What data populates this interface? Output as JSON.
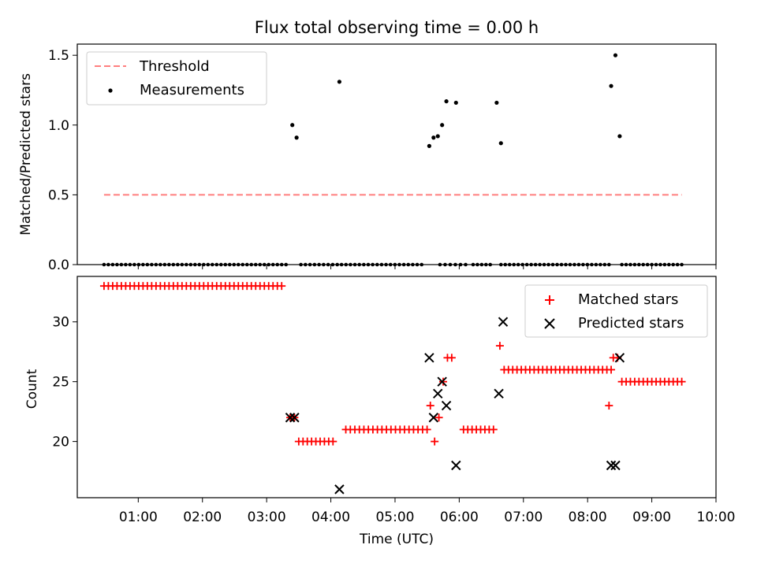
{
  "title": "Flux total observing time = 0.00 h",
  "xlabel": "Time (UTC)",
  "xticks": [
    {
      "t": 60,
      "label": "01:00"
    },
    {
      "t": 120,
      "label": "02:00"
    },
    {
      "t": 180,
      "label": "03:00"
    },
    {
      "t": 240,
      "label": "04:00"
    },
    {
      "t": 300,
      "label": "05:00"
    },
    {
      "t": 360,
      "label": "06:00"
    },
    {
      "t": 420,
      "label": "07:00"
    },
    {
      "t": 480,
      "label": "08:00"
    },
    {
      "t": 540,
      "label": "09:00"
    },
    {
      "t": 600,
      "label": "10:00"
    }
  ],
  "colors": {
    "threshold": "#ff7f7f",
    "measurements": "#000000",
    "matched": "#ff0000",
    "predicted": "#000000"
  },
  "chart_data": [
    {
      "type": "scatter",
      "xunit": "minutes after 00:00 UTC",
      "xlim": [
        3,
        600
      ],
      "ylabel": "Matched/Predicted stars",
      "ylim": [
        0,
        1.58
      ],
      "yticks": [
        {
          "v": 0,
          "label": "0.0"
        },
        {
          "v": 0.5,
          "label": "0.5"
        },
        {
          "v": 1.0,
          "label": "1.0"
        },
        {
          "v": 1.5,
          "label": "1.5"
        }
      ],
      "legend_position": "top-left",
      "legend": [
        {
          "key": "threshold",
          "label": "Threshold"
        },
        {
          "key": "measurements",
          "label": "Measurements"
        }
      ],
      "threshold": {
        "value": 0.5,
        "x_start": 28,
        "x_end": 568
      },
      "zero_runs": [
        {
          "start": 28,
          "end": 202,
          "step": 4.05
        },
        {
          "start": 212,
          "end": 246,
          "step": 4.25
        },
        {
          "start": 250,
          "end": 329,
          "step": 4.16
        },
        {
          "start": 342,
          "end": 366,
          "step": 4.8
        },
        {
          "start": 373,
          "end": 389,
          "step": 4.0
        },
        {
          "start": 399,
          "end": 500,
          "step": 4.04
        },
        {
          "start": 512,
          "end": 568,
          "step": 4.0
        }
      ],
      "points": [
        {
          "x": 204,
          "y": 1.0
        },
        {
          "x": 208,
          "y": 0.91
        },
        {
          "x": 248,
          "y": 1.31
        },
        {
          "x": 332,
          "y": 0.85
        },
        {
          "x": 336,
          "y": 0.91
        },
        {
          "x": 340,
          "y": 0.92
        },
        {
          "x": 344,
          "y": 1.0
        },
        {
          "x": 348,
          "y": 1.17
        },
        {
          "x": 357,
          "y": 1.16
        },
        {
          "x": 395,
          "y": 1.16
        },
        {
          "x": 399,
          "y": 0.87
        },
        {
          "x": 502,
          "y": 1.28
        },
        {
          "x": 506,
          "y": 1.5
        },
        {
          "x": 510,
          "y": 0.92
        }
      ]
    },
    {
      "type": "scatter",
      "xunit": "minutes after 00:00 UTC",
      "xlim": [
        3,
        600
      ],
      "ylabel": "Count",
      "ylim": [
        15.3,
        33.8
      ],
      "yticks": [
        {
          "v": 20,
          "label": "20"
        },
        {
          "v": 25,
          "label": "25"
        },
        {
          "v": 30,
          "label": "30"
        }
      ],
      "legend_position": "top-right",
      "legend": [
        {
          "key": "matched",
          "label": "Matched stars"
        },
        {
          "key": "predicted",
          "label": "Predicted stars"
        }
      ],
      "matched_runs": [
        {
          "start": 28,
          "end": 198,
          "step": 4.05,
          "y": 33
        },
        {
          "start": 210,
          "end": 242,
          "step": 4.0,
          "y": 20
        },
        {
          "start": 254,
          "end": 330,
          "step": 4.22,
          "y": 21
        },
        {
          "start": 364,
          "end": 392,
          "step": 4.0,
          "y": 21
        },
        {
          "start": 402,
          "end": 504,
          "step": 4.0,
          "y": 26
        },
        {
          "start": 512,
          "end": 568,
          "step": 4.0,
          "y": 25
        }
      ],
      "matched_points": [
        {
          "x": 202,
          "y": 22
        },
        {
          "x": 206,
          "y": 22
        },
        {
          "x": 333,
          "y": 23
        },
        {
          "x": 337,
          "y": 20
        },
        {
          "x": 341,
          "y": 22
        },
        {
          "x": 345,
          "y": 25
        },
        {
          "x": 349,
          "y": 27
        },
        {
          "x": 353,
          "y": 27
        },
        {
          "x": 398,
          "y": 28
        },
        {
          "x": 500,
          "y": 23
        },
        {
          "x": 504,
          "y": 27
        },
        {
          "x": 508,
          "y": 27
        }
      ],
      "predicted_points": [
        {
          "x": 202,
          "y": 22
        },
        {
          "x": 206,
          "y": 22
        },
        {
          "x": 248,
          "y": 16
        },
        {
          "x": 332,
          "y": 27
        },
        {
          "x": 336,
          "y": 22
        },
        {
          "x": 340,
          "y": 24
        },
        {
          "x": 344,
          "y": 25
        },
        {
          "x": 348,
          "y": 23
        },
        {
          "x": 357,
          "y": 18
        },
        {
          "x": 397,
          "y": 24
        },
        {
          "x": 401,
          "y": 30
        },
        {
          "x": 502,
          "y": 18
        },
        {
          "x": 506,
          "y": 18
        },
        {
          "x": 510,
          "y": 27
        }
      ]
    }
  ]
}
